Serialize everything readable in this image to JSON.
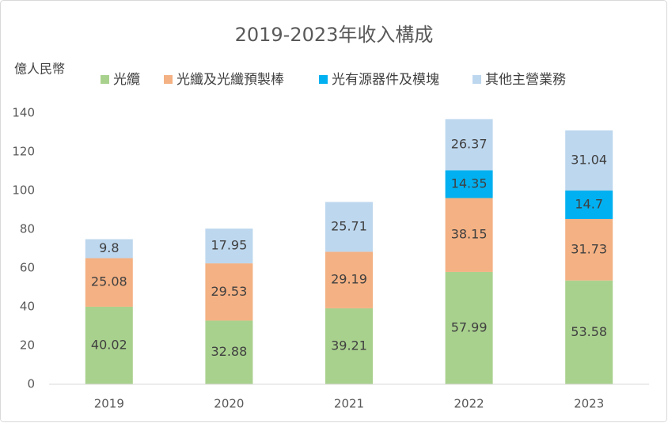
{
  "chart_data": {
    "type": "stacked_bar",
    "title": "2019-2023年收入構成",
    "ylabel": "億人民幣",
    "categories": [
      "2019",
      "2020",
      "2021",
      "2022",
      "2023"
    ],
    "series": [
      {
        "name": "光纜",
        "color": "#a9d18e",
        "values": [
          40.02,
          32.88,
          39.21,
          57.99,
          53.58
        ]
      },
      {
        "name": "光纖及光纖預製棒",
        "color": "#f4b183",
        "values": [
          25.08,
          29.53,
          29.19,
          38.15,
          31.73
        ]
      },
      {
        "name": "光有源器件及模塊",
        "color": "#00b0f0",
        "values": [
          null,
          null,
          null,
          14.35,
          14.7
        ]
      },
      {
        "name": "其他主營業務",
        "color": "#bdd7ee",
        "values": [
          9.8,
          17.95,
          25.71,
          26.37,
          31.04
        ]
      }
    ],
    "ylim": [
      0,
      140
    ],
    "yticks": [
      0,
      20,
      40,
      60,
      80,
      100,
      120,
      140
    ],
    "grid": false
  }
}
